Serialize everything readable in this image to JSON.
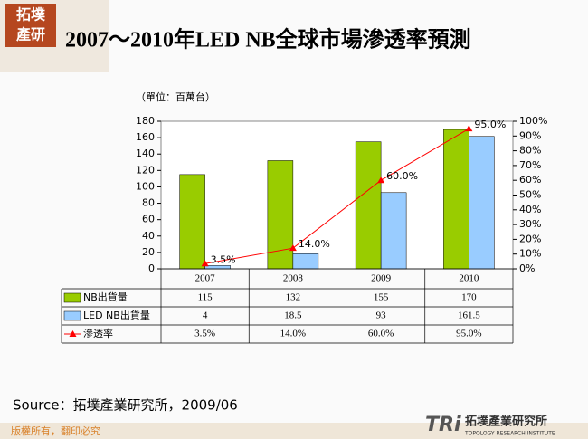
{
  "logo": {
    "line1": "拓墣",
    "line2": "產研"
  },
  "chart_data": {
    "type": "bar-line",
    "title": "2007～2010年LED NB全球市場滲透率預測",
    "unit_note": "（單位：百萬台）",
    "categories": [
      "2007",
      "2008",
      "2009",
      "2010"
    ],
    "series": [
      {
        "name": "NB出貨量",
        "color": "#99cc00",
        "values": [
          115,
          132,
          155,
          170
        ]
      },
      {
        "name": "LED NB出貨量",
        "color": "#99ccff",
        "values": [
          4,
          18.5,
          93,
          161.5
        ]
      },
      {
        "name": "滲透率",
        "color": "#ff0000",
        "axis": "y2",
        "type": "line",
        "values": [
          3.5,
          14,
          60,
          95
        ],
        "value_labels": [
          "3.5%",
          "14.0%",
          "60.0%",
          "95.0%"
        ]
      }
    ],
    "ylim": [
      0,
      180
    ],
    "yticks": [
      0,
      20,
      40,
      60,
      80,
      100,
      120,
      140,
      160,
      180
    ],
    "y2lim": [
      0,
      100
    ],
    "y2ticks": [
      {
        "value": 0,
        "label": "0%"
      },
      {
        "value": 10,
        "label": "10%"
      },
      {
        "value": 20,
        "label": "20%"
      },
      {
        "value": 30,
        "label": "30%"
      },
      {
        "value": 40,
        "label": "40%"
      },
      {
        "value": 50,
        "label": "50%"
      },
      {
        "value": 60,
        "label": "60%"
      },
      {
        "value": 70,
        "label": "70%"
      },
      {
        "value": 80,
        "label": "80%"
      },
      {
        "value": 90,
        "label": "90%"
      },
      {
        "value": 100,
        "label": "100%"
      }
    ],
    "source": "Source：拓墣產業研究所，2009/06"
  },
  "footer": {
    "copyright": "版權所有，翻印必究",
    "brand": "TRi",
    "brand_name": "拓墣產業研究所",
    "brand_en": "TOPOLOGY RESEARCH INSTITUTE"
  }
}
